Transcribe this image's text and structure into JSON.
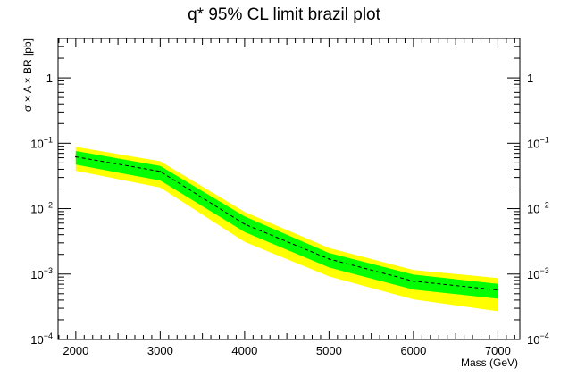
{
  "chart_data": {
    "type": "area",
    "title": "q* 95% CL limit brazil plot",
    "xlabel": "Mass (GeV)",
    "ylabel": "σ × A × BR [pb]",
    "xlim": [
      1790,
      7260
    ],
    "ylim": [
      0.0001,
      4
    ],
    "y_scale": "log",
    "x_ticks": [
      2000,
      3000,
      4000,
      5000,
      6000,
      7000
    ],
    "y_ticks": [
      {
        "value": 0.0001,
        "base": "10",
        "exp": "−4"
      },
      {
        "value": 0.001,
        "base": "10",
        "exp": "−3"
      },
      {
        "value": 0.01,
        "base": "10",
        "exp": "−2"
      },
      {
        "value": 0.1,
        "base": "10",
        "exp": "−1"
      },
      {
        "value": 1,
        "base": "1",
        "exp": ""
      }
    ],
    "x": [
      2000,
      3000,
      4000,
      5000,
      6000,
      7000
    ],
    "series": [
      {
        "values": [
          0.062,
          0.037,
          0.0058,
          0.0017,
          0.00078,
          0.00057
        ],
        "style": "dashed"
      },
      {
        "lower": [
          0.047,
          0.027,
          0.0044,
          0.00126,
          0.00058,
          0.00042
        ],
        "upper": [
          0.076,
          0.045,
          0.0076,
          0.0021,
          0.00098,
          0.00071
        ],
        "style": "band"
      },
      {
        "lower": [
          0.038,
          0.021,
          0.0031,
          0.00092,
          0.00041,
          0.00027
        ],
        "upper": [
          0.088,
          0.053,
          0.0089,
          0.0025,
          0.00115,
          0.00087
        ],
        "style": "band"
      }
    ],
    "grid": false,
    "colors": {
      "inner_band": "#00ff00",
      "outer_band": "#ffff00",
      "median_line": "#000000"
    }
  }
}
